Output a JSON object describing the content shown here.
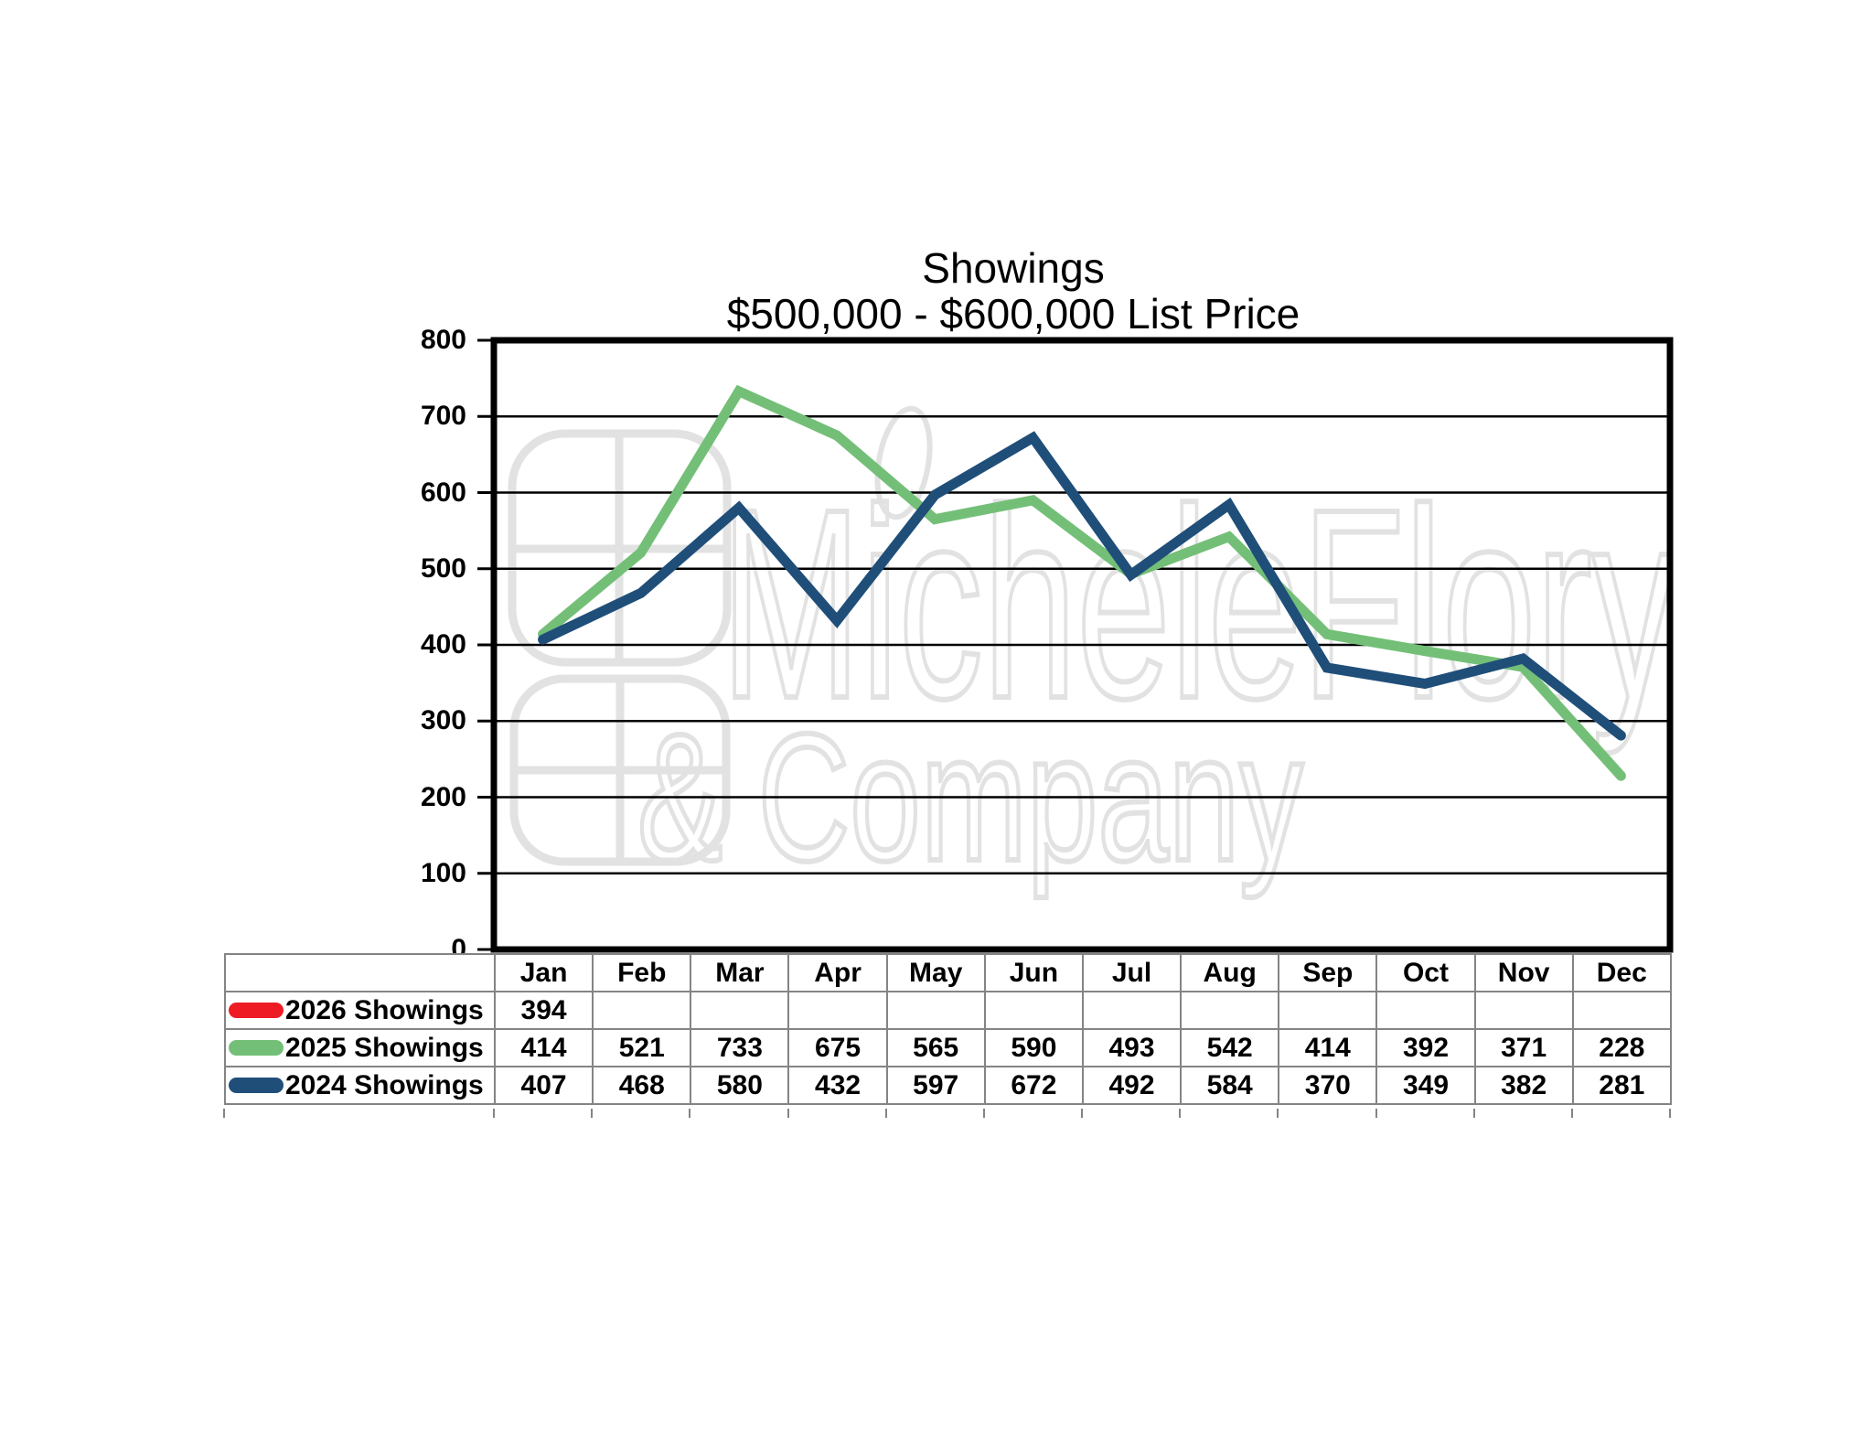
{
  "title": {
    "line1": "Showings",
    "line2": "$500,000 - $600,000 List Price"
  },
  "watermark": {
    "line1": "MicheleFlory",
    "line2": "& Company"
  },
  "colors": {
    "series_2026": "#EE1B24",
    "series_2025": "#74BF78",
    "series_2024": "#1F4E79",
    "gridline": "#000000",
    "table_border": "#848484",
    "watermark": "#E2E2E2"
  },
  "chart_data": {
    "type": "line",
    "title": "Showings $500,000 - $600,000 List Price",
    "categories": [
      "Jan",
      "Feb",
      "Mar",
      "Apr",
      "May",
      "Jun",
      "Jul",
      "Aug",
      "Sep",
      "Oct",
      "Nov",
      "Dec"
    ],
    "series": [
      {
        "name": "2026 Showings",
        "color": "#EE1B24",
        "values": [
          394,
          null,
          null,
          null,
          null,
          null,
          null,
          null,
          null,
          null,
          null,
          null
        ]
      },
      {
        "name": "2025 Showings",
        "color": "#74BF78",
        "values": [
          414,
          521,
          733,
          675,
          565,
          590,
          493,
          542,
          414,
          392,
          371,
          228
        ]
      },
      {
        "name": "2024 Showings",
        "color": "#1F4E79",
        "values": [
          407,
          468,
          580,
          432,
          597,
          672,
          492,
          584,
          370,
          349,
          382,
          281
        ]
      }
    ],
    "y_axis": {
      "min": 0,
      "max": 800,
      "step": 100,
      "ticks": [
        800,
        700,
        600,
        500,
        400,
        300,
        200,
        100,
        0
      ]
    },
    "grid": "horizontal",
    "legend_position": "table-left"
  }
}
